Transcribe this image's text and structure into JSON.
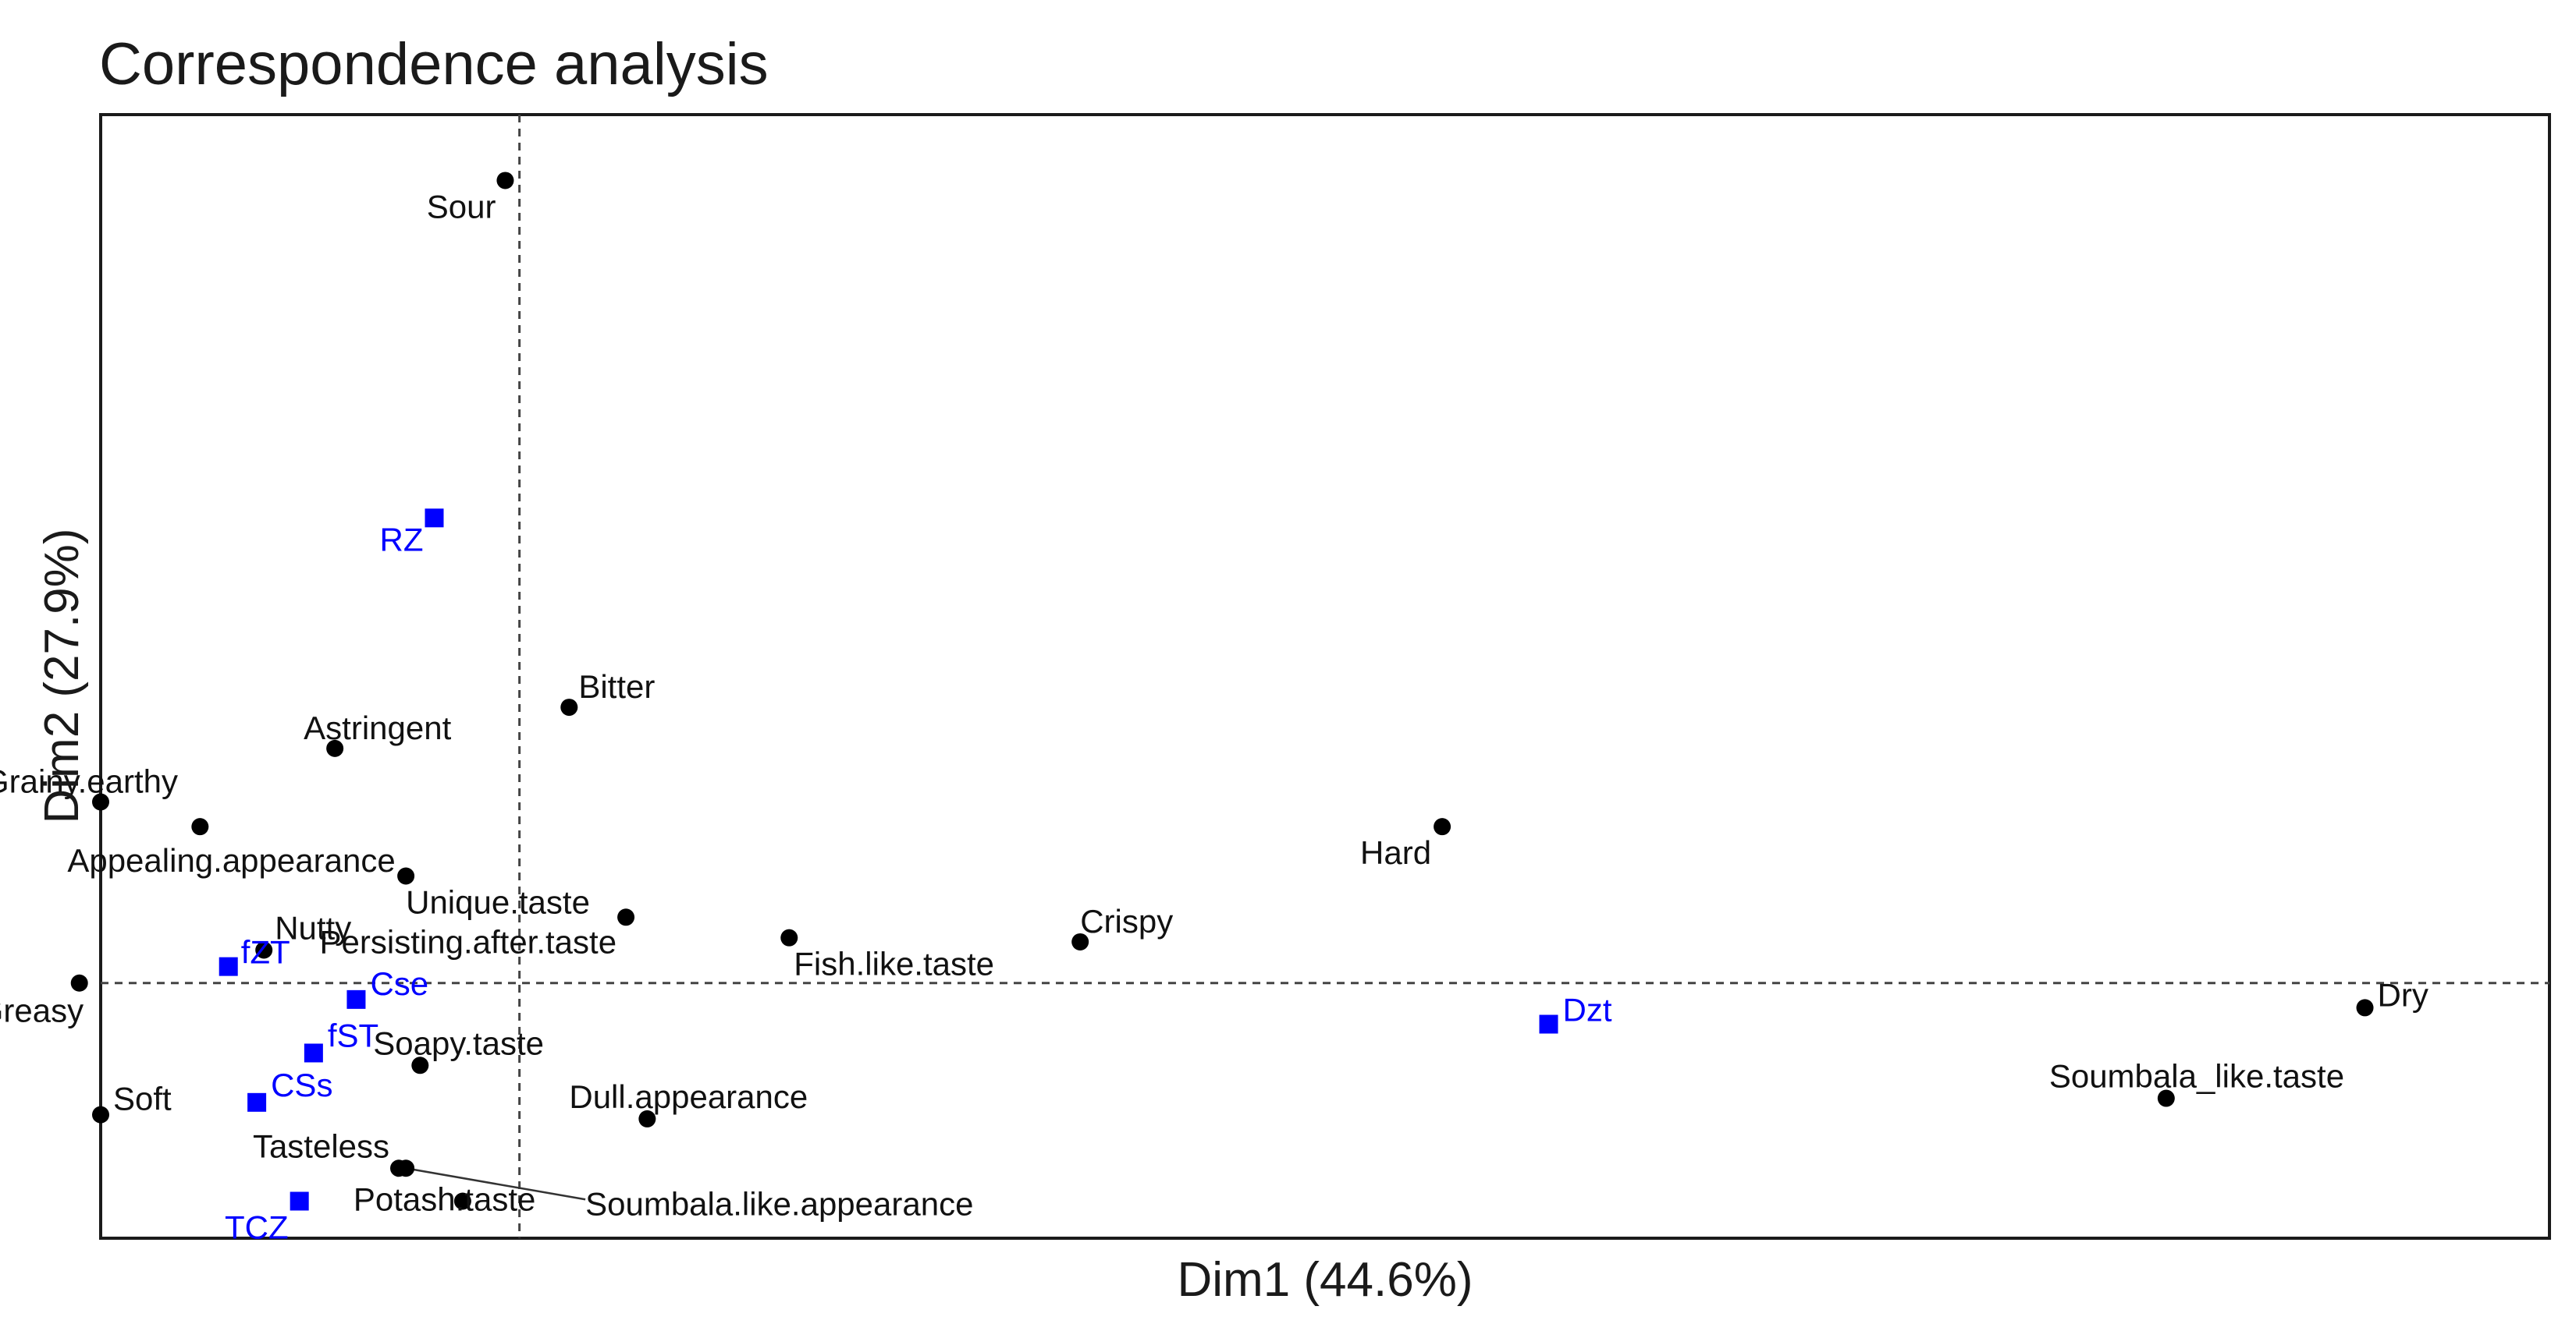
{
  "chart_data": {
    "type": "scatter",
    "title": "Correspondence analysis",
    "xlabel": "Dim1 (44.6%)",
    "ylabel": "Dim2 (27.9%)",
    "xlim": [
      -0.59,
      2.86
    ],
    "ylim": [
      -0.62,
      2.11
    ],
    "grid": false,
    "reference_lines": {
      "x": 0,
      "y": 0
    },
    "colors": {
      "attributes": "#000000",
      "samples": "#0000ff"
    },
    "series": [
      {
        "marker": "circle",
        "points": [
          {
            "label": "Sour",
            "x": -0.02,
            "y": 1.95
          },
          {
            "label": "Bitter",
            "x": 0.07,
            "y": 0.67
          },
          {
            "label": "Astringent",
            "x": -0.26,
            "y": 0.57
          },
          {
            "label": "Grainy.earthy",
            "x": -0.59,
            "y": 0.44
          },
          {
            "label": "Appealing.appearance",
            "x": -0.45,
            "y": 0.38
          },
          {
            "label": "Unique.taste",
            "x": -0.16,
            "y": 0.26
          },
          {
            "label": "Persisting.after.taste",
            "x": 0.15,
            "y": 0.16
          },
          {
            "label": "Fish.like.taste",
            "x": 0.38,
            "y": 0.11
          },
          {
            "label": "Crispy",
            "x": 0.79,
            "y": 0.1
          },
          {
            "label": "Hard",
            "x": 1.3,
            "y": 0.38
          },
          {
            "label": "Nutty",
            "x": -0.36,
            "y": 0.08
          },
          {
            "label": "Greasy",
            "x": -0.62,
            "y": 0.0
          },
          {
            "label": "Dry",
            "x": 2.6,
            "y": -0.06
          },
          {
            "label": "Soapy.taste",
            "x": -0.14,
            "y": -0.2
          },
          {
            "label": "Soft",
            "x": -0.59,
            "y": -0.32
          },
          {
            "label": "Dull.appearance",
            "x": 0.18,
            "y": -0.33
          },
          {
            "label": "Soumbala_like.taste",
            "x": 2.32,
            "y": -0.28
          },
          {
            "label": "Tasteless",
            "x": -0.17,
            "y": -0.45
          },
          {
            "label": "Potash.taste",
            "x": -0.08,
            "y": -0.53
          },
          {
            "label": "Soumbala.like.appearance",
            "x": -0.16,
            "y": -0.45
          }
        ]
      },
      {
        "marker": "square",
        "points": [
          {
            "label": "RZ",
            "x": -0.12,
            "y": 1.13
          },
          {
            "label": "fZT",
            "x": -0.41,
            "y": 0.04
          },
          {
            "label": "Cse",
            "x": -0.23,
            "y": -0.04
          },
          {
            "label": "fST",
            "x": -0.29,
            "y": -0.17
          },
          {
            "label": "CSs",
            "x": -0.37,
            "y": -0.29
          },
          {
            "label": "TCZ",
            "x": -0.31,
            "y": -0.53
          },
          {
            "label": "Dzt",
            "x": 1.45,
            "y": -0.1
          }
        ]
      }
    ]
  }
}
